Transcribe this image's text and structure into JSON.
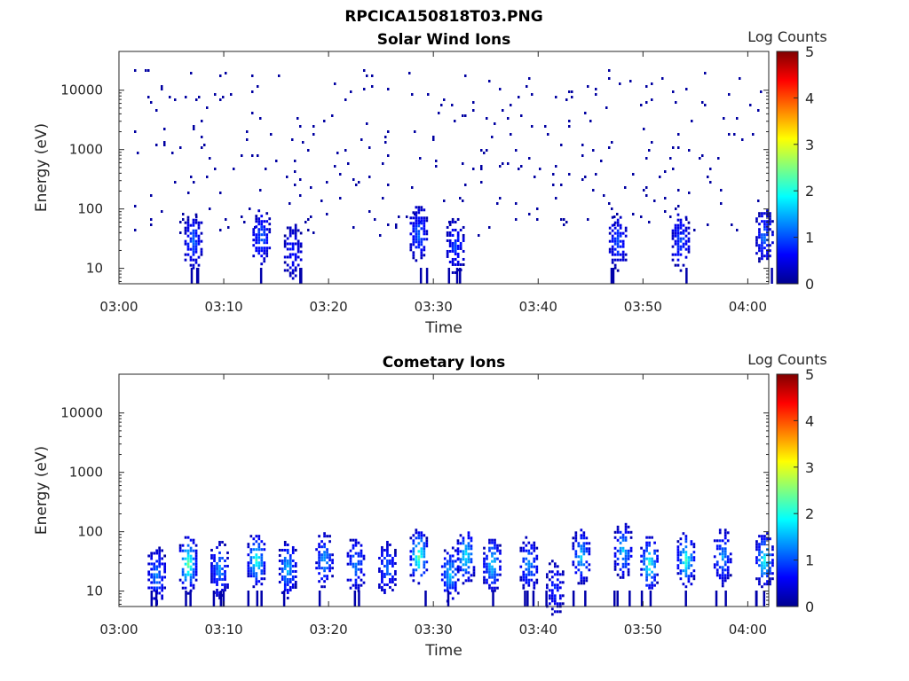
{
  "figure_title": "RPCICA150818T03.PNG",
  "chart_data": [
    {
      "type": "heatmap",
      "title": "Solar Wind Ions",
      "xlabel": "Time",
      "ylabel": "Energy (eV)",
      "x_ticks": [
        "03:00",
        "03:10",
        "03:20",
        "03:30",
        "03:40",
        "03:50",
        "04:00"
      ],
      "y_ticks": [
        "10",
        "100",
        "1000",
        "10000"
      ],
      "y_scale": "log",
      "colorbar": {
        "label": "Log Counts",
        "ticks": [
          "0",
          "1",
          "2",
          "3",
          "4",
          "5"
        ],
        "range": [
          0,
          5
        ],
        "colormap": "jet"
      },
      "scatter_density": 0.055,
      "clusters": [
        {
          "t": 7,
          "e": 30,
          "v": 1.0
        },
        {
          "t": 13.5,
          "e": 35,
          "v": 1.0
        },
        {
          "t": 16.5,
          "e": 20,
          "v": 0.6
        },
        {
          "t": 28.5,
          "e": 40,
          "v": 1.0
        },
        {
          "t": 32,
          "e": 25,
          "v": 0.8
        },
        {
          "t": 47.5,
          "e": 30,
          "v": 0.9
        },
        {
          "t": 53.5,
          "e": 30,
          "v": 0.9
        },
        {
          "t": 61.5,
          "e": 35,
          "v": 1.0
        }
      ]
    },
    {
      "type": "heatmap",
      "title": "Cometary Ions",
      "xlabel": "Time",
      "ylabel": "Energy (eV)",
      "x_ticks": [
        "03:00",
        "03:10",
        "03:20",
        "03:30",
        "03:40",
        "03:50",
        "04:00"
      ],
      "y_ticks": [
        "10",
        "100",
        "1000",
        "10000"
      ],
      "y_scale": "log",
      "colorbar": {
        "label": "Log Counts",
        "ticks": [
          "0",
          "1",
          "2",
          "3",
          "4",
          "5"
        ],
        "range": [
          0,
          5
        ],
        "colormap": "jet"
      },
      "scatter_density": 0,
      "clusters": [
        {
          "t": 3.5,
          "e": 20,
          "v": 1.2
        },
        {
          "t": 6.5,
          "e": 30,
          "v": 2.3
        },
        {
          "t": 9.5,
          "e": 25,
          "v": 1.3
        },
        {
          "t": 13,
          "e": 35,
          "v": 2.0
        },
        {
          "t": 16,
          "e": 25,
          "v": 1.5
        },
        {
          "t": 19.5,
          "e": 35,
          "v": 1.3
        },
        {
          "t": 22.5,
          "e": 30,
          "v": 1.2
        },
        {
          "t": 25.5,
          "e": 25,
          "v": 1.0
        },
        {
          "t": 28.5,
          "e": 40,
          "v": 2.3
        },
        {
          "t": 31.5,
          "e": 20,
          "v": 1.5
        },
        {
          "t": 33,
          "e": 40,
          "v": 1.8
        },
        {
          "t": 35.5,
          "e": 30,
          "v": 1.6
        },
        {
          "t": 39,
          "e": 30,
          "v": 1.3
        },
        {
          "t": 41.5,
          "e": 12,
          "v": 0.7
        },
        {
          "t": 44,
          "e": 40,
          "v": 1.5
        },
        {
          "t": 48,
          "e": 50,
          "v": 1.5
        },
        {
          "t": 50.5,
          "e": 30,
          "v": 2.0
        },
        {
          "t": 54,
          "e": 35,
          "v": 2.0
        },
        {
          "t": 57.5,
          "e": 40,
          "v": 1.3
        },
        {
          "t": 61.5,
          "e": 35,
          "v": 1.9
        }
      ]
    }
  ]
}
